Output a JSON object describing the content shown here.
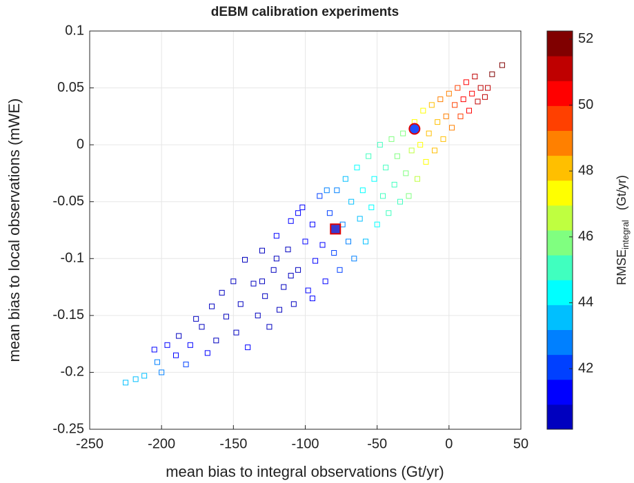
{
  "chart_data": {
    "type": "scatter",
    "title": "dEBM calibration experiments",
    "xlabel": "mean bias to integral observations (Gt/yr)",
    "ylabel": "mean bias to local observations (mWE)",
    "colorbar_label": "RMSE",
    "colorbar_label_sub": "integral",
    "colorbar_label_unit": "(Gt/yr)",
    "xlim": [
      -250,
      50
    ],
    "xticks": [
      -250,
      -200,
      -150,
      -100,
      -50,
      0,
      50
    ],
    "ylim": [
      -0.25,
      0.1
    ],
    "yticks": [
      -0.25,
      -0.2,
      -0.15,
      -0.1,
      -0.05,
      0,
      0.05,
      0.1
    ],
    "grid": true,
    "clim": [
      40.16,
      52.25
    ],
    "cticks": [
      42,
      44,
      46,
      48,
      50,
      52
    ],
    "colormap": [
      "#0000bf",
      "#0000ff",
      "#0040ff",
      "#0080ff",
      "#00bfff",
      "#00ffff",
      "#40ffbf",
      "#80ff80",
      "#bfff40",
      "#ffff00",
      "#ffbf00",
      "#ff8000",
      "#ff4000",
      "#ff0000",
      "#bf0000",
      "#800000"
    ],
    "x": [
      -225,
      -218,
      -212,
      -205,
      -203,
      -200,
      -196,
      -190,
      -188,
      -183,
      -180,
      -176,
      -172,
      -168,
      -165,
      -162,
      -158,
      -155,
      -150,
      -148,
      -145,
      -142,
      -140,
      -136,
      -133,
      -130,
      -128,
      -125,
      -122,
      -120,
      -118,
      -115,
      -112,
      -110,
      -108,
      -105,
      -102,
      -100,
      -98,
      -95,
      -93,
      -90,
      -88,
      -86,
      -83,
      -80,
      -78,
      -76,
      -74,
      -72,
      -70,
      -68,
      -66,
      -64,
      -62,
      -60,
      -58,
      -56,
      -54,
      -52,
      -50,
      -48,
      -46,
      -44,
      -42,
      -40,
      -38,
      -36,
      -34,
      -32,
      -30,
      -28,
      -26,
      -24,
      -22,
      -20,
      -18,
      -16,
      -14,
      -12,
      -10,
      -8,
      -6,
      -4,
      -2,
      0,
      2,
      4,
      6,
      8,
      10,
      12,
      14,
      16,
      18,
      20,
      22,
      25,
      27,
      30,
      37,
      -110,
      -95,
      -105,
      -130,
      -85,
      -120
    ],
    "values": [
      -0.209,
      -0.206,
      -0.203,
      -0.18,
      -0.191,
      -0.2,
      -0.176,
      -0.185,
      -0.168,
      -0.193,
      -0.176,
      -0.153,
      -0.16,
      -0.183,
      -0.142,
      -0.172,
      -0.13,
      -0.151,
      -0.12,
      -0.165,
      -0.14,
      -0.101,
      -0.178,
      -0.122,
      -0.15,
      -0.093,
      -0.133,
      -0.16,
      -0.11,
      -0.08,
      -0.145,
      -0.125,
      -0.092,
      -0.067,
      -0.14,
      -0.11,
      -0.055,
      -0.085,
      -0.128,
      -0.07,
      -0.102,
      -0.045,
      -0.088,
      -0.12,
      -0.06,
      -0.095,
      -0.04,
      -0.11,
      -0.07,
      -0.03,
      -0.085,
      -0.05,
      -0.1,
      -0.02,
      -0.065,
      -0.04,
      -0.085,
      -0.01,
      -0.055,
      -0.03,
      -0.07,
      0,
      -0.045,
      -0.02,
      -0.06,
      0.005,
      -0.035,
      -0.01,
      -0.05,
      0.01,
      -0.025,
      -0.045,
      -0.005,
      0.02,
      -0.03,
      0,
      0.03,
      -0.015,
      0.01,
      0.035,
      -0.005,
      0.02,
      0.04,
      0.005,
      0.025,
      0.045,
      0.015,
      0.035,
      0.05,
      0.025,
      0.04,
      0.055,
      0.03,
      0.045,
      0.06,
      0.038,
      0.05,
      0.042,
      0.05,
      0.062,
      0.07,
      -0.115,
      -0.135,
      -0.06,
      -0.12,
      -0.04,
      -0.1
    ],
    "color_values": [
      43.6,
      43.4,
      43.2,
      41.5,
      43,
      42.8,
      41.2,
      41,
      40.8,
      42,
      41,
      40.9,
      40.8,
      41.3,
      40.8,
      40.9,
      40.7,
      40.8,
      40.8,
      40.9,
      40.7,
      40.9,
      41.1,
      40.7,
      40.8,
      40.9,
      40.7,
      40.9,
      40.7,
      41,
      40.8,
      40.7,
      40.8,
      41.2,
      40.9,
      40.8,
      41.5,
      41,
      41,
      41.2,
      41.1,
      42,
      41.5,
      41.3,
      42,
      41.8,
      42.8,
      42,
      42.6,
      43.5,
      42.8,
      43.2,
      43,
      44.2,
      43.6,
      44,
      43.8,
      44.8,
      44.2,
      44.6,
      44.4,
      45.2,
      44.8,
      45,
      44.8,
      45.6,
      45.3,
      45.8,
      45.4,
      46.2,
      46,
      45.8,
      46.6,
      47,
      46.5,
      47.2,
      47.6,
      47.2,
      47.8,
      48.2,
      47.8,
      48.4,
      48.8,
      48.4,
      48.9,
      49.2,
      49,
      49.5,
      49.8,
      49.6,
      50,
      50.4,
      50.2,
      50.6,
      51,
      50.8,
      51,
      51.2,
      51.4,
      51.6,
      52,
      40.8,
      41,
      41.5,
      40.8,
      42.5,
      40.7
    ],
    "highlights": [
      {
        "x": -24,
        "y": 0.014,
        "marker": "circle"
      },
      {
        "x": -79,
        "y": -0.074,
        "marker": "square"
      }
    ]
  }
}
